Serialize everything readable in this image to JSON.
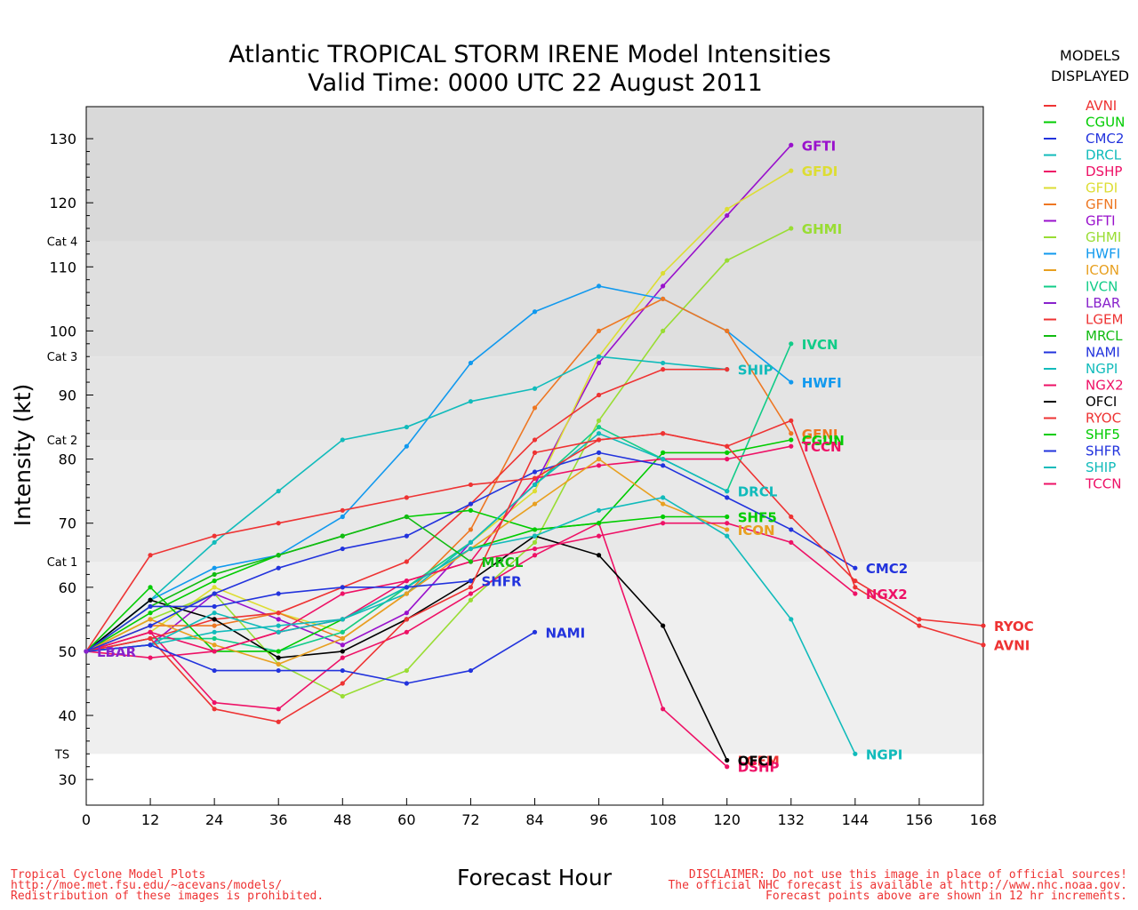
{
  "title": [
    "Atlantic TROPICAL STORM IRENE Model Intensities",
    "Valid Time: 0000 UTC 22 August 2011"
  ],
  "legend": {
    "heading": [
      "MODELS",
      "DISPLAYED"
    ],
    "items": [
      {
        "name": "AVNI",
        "color": "#ee3333"
      },
      {
        "name": "CGUN",
        "color": "#00cc00"
      },
      {
        "name": "CMC2",
        "color": "#2233dd"
      },
      {
        "name": "DRCL",
        "color": "#11bbbb"
      },
      {
        "name": "DSHP",
        "color": "#ee1166"
      },
      {
        "name": "GFDI",
        "color": "#dddd33"
      },
      {
        "name": "GFNI",
        "color": "#ee7722"
      },
      {
        "name": "GFTI",
        "color": "#9911cc"
      },
      {
        "name": "GHMI",
        "color": "#99dd33"
      },
      {
        "name": "HWFI",
        "color": "#1199ee"
      },
      {
        "name": "ICON",
        "color": "#e8a020"
      },
      {
        "name": "IVCN",
        "color": "#11cc88"
      },
      {
        "name": "LBAR",
        "color": "#8822cc"
      },
      {
        "name": "LGEM",
        "color": "#ee3333"
      },
      {
        "name": "MRCL",
        "color": "#11bb11"
      },
      {
        "name": "NAMI",
        "color": "#2233dd"
      },
      {
        "name": "NGPI",
        "color": "#11bbbb"
      },
      {
        "name": "NGX2",
        "color": "#ee1166"
      },
      {
        "name": "OFCI",
        "color": "#000000"
      },
      {
        "name": "RYOC",
        "color": "#ee3333"
      },
      {
        "name": "SHF5",
        "color": "#00cc00"
      },
      {
        "name": "SHFR",
        "color": "#2233dd"
      },
      {
        "name": "SHIP",
        "color": "#11bbbb"
      },
      {
        "name": "TCCN",
        "color": "#ee1166"
      }
    ]
  },
  "footer": {
    "left": [
      "Tropical Cyclone Model Plots",
      "http://moe.met.fsu.edu/~acevans/models/",
      "Redistribution of these images is prohibited."
    ],
    "right": [
      "DISCLAIMER: Do not use this image in place of official sources!",
      "The official NHC forecast is available at http://www.nhc.noaa.gov.",
      "Forecast points above are shown in 12 hr increments."
    ],
    "color": "#ee3333"
  },
  "chart_data": {
    "type": "line",
    "xlabel": "Forecast Hour",
    "ylabel": "Intensity (kt)",
    "xlim": [
      0,
      168
    ],
    "ylim": [
      26,
      135
    ],
    "xticks": [
      0,
      12,
      24,
      36,
      48,
      60,
      72,
      84,
      96,
      108,
      120,
      132,
      144,
      156,
      168
    ],
    "yticks": [
      30,
      40,
      50,
      60,
      70,
      80,
      90,
      100,
      110,
      120,
      130
    ],
    "category_bands": [
      {
        "label": "TS",
        "from": 34,
        "to": 64,
        "color": "#efefef"
      },
      {
        "label": "Cat 1",
        "from": 64,
        "to": 83,
        "color": "#e8e8e8"
      },
      {
        "label": "Cat 2",
        "from": 83,
        "to": 96,
        "color": "#e4e4e4"
      },
      {
        "label": "Cat 3",
        "from": 96,
        "to": 114,
        "color": "#dfdfdf"
      },
      {
        "label": "Cat 4",
        "from": 114,
        "to": 135,
        "color": "#d9d9d9"
      }
    ],
    "series": [
      {
        "name": "GFTI",
        "color": "#9911cc",
        "x": [
          0,
          12,
          24,
          36,
          48,
          60,
          72,
          84,
          96,
          108,
          120,
          132
        ],
        "y": [
          50,
          51,
          59,
          55,
          51,
          56,
          67,
          76,
          95,
          107,
          118,
          129
        ],
        "label_pos": [
          134,
          129
        ]
      },
      {
        "name": "GFDI",
        "color": "#dddd33",
        "x": [
          0,
          12,
          24,
          36,
          48,
          60,
          72,
          84,
          96,
          108,
          120,
          132
        ],
        "y": [
          50,
          53,
          60,
          56,
          53,
          60,
          67,
          75,
          96,
          109,
          119,
          125
        ],
        "label_pos": [
          134,
          125
        ]
      },
      {
        "name": "GHMI",
        "color": "#99dd33",
        "x": [
          0,
          12,
          24,
          36,
          48,
          60,
          72,
          84,
          96,
          108,
          120,
          132
        ],
        "y": [
          50,
          55,
          59,
          48,
          43,
          47,
          58,
          67,
          86,
          100,
          111,
          116
        ],
        "label_pos": [
          134,
          116
        ]
      },
      {
        "name": "HWFI",
        "color": "#1199ee",
        "x": [
          0,
          12,
          24,
          36,
          48,
          60,
          72,
          84,
          96,
          108,
          120,
          132
        ],
        "y": [
          50,
          58,
          63,
          65,
          71,
          82,
          95,
          103,
          107,
          105,
          100,
          92
        ],
        "label_pos": [
          134,
          92
        ]
      },
      {
        "name": "GFNI",
        "color": "#ee7722",
        "x": [
          0,
          12,
          24,
          36,
          48,
          60,
          72,
          84,
          96,
          108,
          120,
          132
        ],
        "y": [
          50,
          54,
          54,
          56,
          52,
          59,
          69,
          88,
          100,
          105,
          100,
          84
        ],
        "label_pos": [
          134,
          84
        ]
      },
      {
        "name": "IVCN",
        "color": "#11cc88",
        "x": [
          0,
          12,
          24,
          36,
          48,
          60,
          72,
          84,
          96,
          108,
          120,
          132
        ],
        "y": [
          50,
          52,
          52,
          50,
          53,
          60,
          67,
          76,
          85,
          80,
          75,
          98
        ],
        "label_pos": [
          134,
          98
        ]
      },
      {
        "name": "SHIP",
        "color": "#11bbbb",
        "x": [
          0,
          12,
          24,
          36,
          48,
          60,
          72,
          84,
          96,
          108,
          120
        ],
        "y": [
          50,
          58,
          67,
          75,
          83,
          85,
          89,
          91,
          96,
          95,
          94
        ],
        "label_pos": [
          122,
          94
        ]
      },
      {
        "name": "LGEM",
        "color": "#ee3333",
        "x": [
          0,
          12,
          24,
          36,
          48,
          60,
          72,
          84,
          96,
          108,
          120
        ],
        "y": [
          50,
          52,
          55,
          56,
          60,
          64,
          73,
          83,
          90,
          94,
          94
        ],
        "label_pos": [
          122,
          33
        ]
      },
      {
        "name": "DSHP",
        "color": "#ee1166",
        "x": [
          0,
          12,
          24,
          36,
          48,
          60,
          72,
          84,
          96,
          108,
          120
        ],
        "y": [
          50,
          53,
          42,
          41,
          49,
          53,
          59,
          65,
          70,
          41,
          32
        ],
        "label_pos": [
          122,
          32
        ]
      },
      {
        "name": "OFCI",
        "color": "#000000",
        "x": [
          0,
          12,
          24,
          36,
          48,
          60,
          72,
          84,
          96,
          108,
          120
        ],
        "y": [
          50,
          58,
          55,
          49,
          50,
          55,
          61,
          68,
          65,
          54,
          33
        ],
        "label_pos": [
          122,
          33
        ]
      },
      {
        "name": "CGUN",
        "color": "#00cc00",
        "x": [
          0,
          12,
          24,
          36,
          48,
          60,
          72,
          84,
          96,
          108,
          120,
          132
        ],
        "y": [
          50,
          56,
          61,
          65,
          68,
          71,
          72,
          69,
          70,
          81,
          81,
          83
        ],
        "label_pos": [
          134,
          83
        ]
      },
      {
        "name": "TCCN",
        "color": "#ee1166",
        "x": [
          0,
          12,
          24,
          36,
          48,
          60,
          72,
          84,
          96,
          108,
          120,
          132
        ],
        "y": [
          50,
          53,
          50,
          53,
          59,
          61,
          64,
          77,
          79,
          80,
          80,
          82
        ],
        "label_pos": [
          134,
          82
        ]
      },
      {
        "name": "DRCL",
        "color": "#11bbbb",
        "x": [
          0,
          12,
          24,
          36,
          48,
          60,
          72,
          84,
          96,
          108,
          120
        ],
        "y": [
          50,
          51,
          53,
          54,
          55,
          59,
          67,
          76,
          84,
          80,
          75
        ],
        "label_pos": [
          122,
          75
        ]
      },
      {
        "name": "SHF5",
        "color": "#00cc00",
        "x": [
          0,
          12,
          24,
          36,
          48,
          60,
          72,
          84,
          96,
          108,
          120
        ],
        "y": [
          50,
          60,
          50,
          50,
          55,
          60,
          66,
          69,
          70,
          71,
          71
        ],
        "label_pos": [
          122,
          71
        ]
      },
      {
        "name": "ICON",
        "color": "#e8a020",
        "x": [
          0,
          12,
          24,
          36,
          48,
          60,
          72,
          84,
          96,
          108,
          120
        ],
        "y": [
          50,
          55,
          51,
          48,
          52,
          59,
          66,
          73,
          80,
          73,
          69
        ],
        "label_pos": [
          122,
          69
        ]
      },
      {
        "name": "CMC2",
        "color": "#2233dd",
        "x": [
          0,
          12,
          24,
          36,
          48,
          60,
          72,
          84,
          96,
          108,
          120,
          132,
          144
        ],
        "y": [
          50,
          54,
          59,
          63,
          66,
          68,
          73,
          78,
          81,
          79,
          74,
          69,
          63
        ],
        "label_pos": [
          146,
          63
        ]
      },
      {
        "name": "NGX2",
        "color": "#ee1166",
        "x": [
          0,
          12,
          24,
          36,
          48,
          60,
          72,
          84,
          96,
          108,
          120,
          132,
          144
        ],
        "y": [
          50,
          49,
          50,
          53,
          55,
          61,
          64,
          66,
          68,
          70,
          70,
          67,
          59
        ],
        "label_pos": [
          146,
          59
        ]
      },
      {
        "name": "NGPI",
        "color": "#11bbbb",
        "x": [
          0,
          12,
          24,
          36,
          48,
          60,
          72,
          84,
          96,
          108,
          120,
          132,
          144
        ],
        "y": [
          50,
          51,
          56,
          53,
          55,
          60,
          66,
          68,
          72,
          74,
          68,
          55,
          34
        ],
        "label_pos": [
          146,
          34
        ]
      },
      {
        "name": "RYOC",
        "color": "#ee3333",
        "x": [
          0,
          12,
          24,
          36,
          48,
          60,
          72,
          84,
          96,
          108,
          120,
          132,
          144,
          156,
          168
        ],
        "y": [
          50,
          65,
          68,
          70,
          72,
          74,
          76,
          77,
          83,
          84,
          82,
          71,
          61,
          55,
          54
        ],
        "label_pos": [
          170,
          54
        ]
      },
      {
        "name": "AVNI",
        "color": "#ee3333",
        "x": [
          0,
          12,
          24,
          36,
          48,
          60,
          72,
          84,
          96,
          108,
          120,
          132,
          144,
          156,
          168
        ],
        "y": [
          50,
          52,
          41,
          39,
          45,
          55,
          60,
          81,
          83,
          84,
          82,
          86,
          60,
          54,
          51
        ],
        "label_pos": [
          170,
          51
        ]
      },
      {
        "name": "MRCL",
        "color": "#11bb11",
        "x": [
          0,
          12,
          24,
          36,
          48,
          60,
          72
        ],
        "y": [
          50,
          57,
          62,
          65,
          68,
          71,
          64
        ],
        "label_pos": [
          74,
          64
        ]
      },
      {
        "name": "SHFR",
        "color": "#2233dd",
        "x": [
          0,
          12,
          24,
          36,
          48,
          60,
          72
        ],
        "y": [
          50,
          57,
          57,
          59,
          60,
          60,
          61
        ],
        "label_pos": [
          74,
          61
        ]
      },
      {
        "name": "NAMI",
        "color": "#2233dd",
        "x": [
          0,
          12,
          24,
          36,
          48,
          60,
          72,
          84
        ],
        "y": [
          50,
          51,
          47,
          47,
          47,
          45,
          47,
          53
        ],
        "label_pos": [
          86,
          53
        ]
      },
      {
        "name": "LBAR",
        "color": "#8822cc",
        "x": [
          0,
          0
        ],
        "y": [
          50,
          50
        ],
        "label_pos": [
          2,
          50
        ]
      }
    ]
  }
}
